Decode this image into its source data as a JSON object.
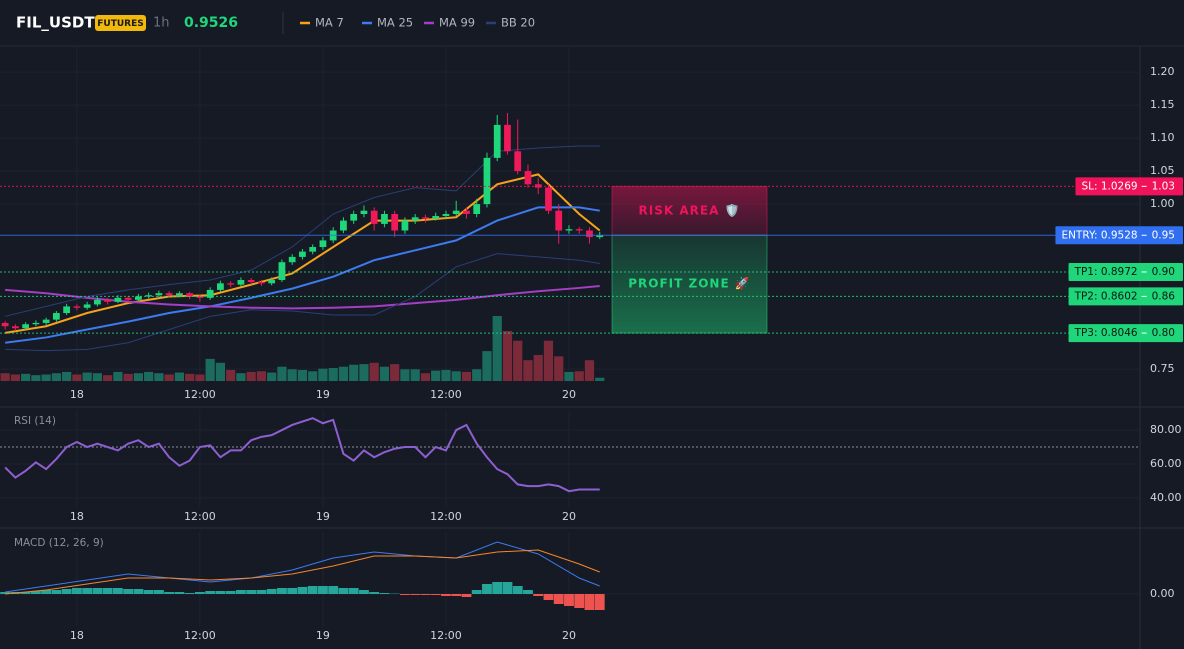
{
  "header": {
    "symbol": "FIL_USDT",
    "badge": "FUTURES",
    "interval": "1h",
    "price": "0.9526"
  },
  "chart_data": [
    {
      "type": "candlestick",
      "x": [
        0,
        1,
        2,
        3,
        4,
        5,
        6,
        7,
        8,
        9,
        10,
        11,
        12,
        13,
        14,
        15,
        16,
        17,
        18,
        19,
        20,
        21,
        22,
        23,
        24,
        25,
        26,
        27,
        28,
        29,
        30,
        31,
        32,
        33,
        34,
        35,
        36,
        37,
        38,
        39,
        40,
        41,
        42,
        43,
        44,
        45,
        46,
        47,
        48,
        49,
        50,
        51,
        52,
        53,
        54,
        55,
        56,
        57,
        58
      ],
      "candles": [
        [
          0.82,
          0.823,
          0.81,
          0.815
        ],
        [
          0.815,
          0.818,
          0.808,
          0.812
        ],
        [
          0.812,
          0.821,
          0.81,
          0.818
        ],
        [
          0.818,
          0.824,
          0.815,
          0.82
        ],
        [
          0.82,
          0.828,
          0.817,
          0.825
        ],
        [
          0.825,
          0.838,
          0.822,
          0.835
        ],
        [
          0.835,
          0.849,
          0.832,
          0.845
        ],
        [
          0.845,
          0.848,
          0.839,
          0.843
        ],
        [
          0.843,
          0.852,
          0.84,
          0.848
        ],
        [
          0.848,
          0.859,
          0.845,
          0.855
        ],
        [
          0.855,
          0.858,
          0.848,
          0.852
        ],
        [
          0.852,
          0.862,
          0.85,
          0.858
        ],
        [
          0.858,
          0.861,
          0.851,
          0.855
        ],
        [
          0.855,
          0.864,
          0.853,
          0.86
        ],
        [
          0.86,
          0.866,
          0.857,
          0.862
        ],
        [
          0.862,
          0.869,
          0.859,
          0.865
        ],
        [
          0.865,
          0.868,
          0.858,
          0.862
        ],
        [
          0.862,
          0.868,
          0.859,
          0.865
        ],
        [
          0.865,
          0.867,
          0.856,
          0.86
        ],
        [
          0.86,
          0.863,
          0.852,
          0.858
        ],
        [
          0.858,
          0.874,
          0.855,
          0.87
        ],
        [
          0.87,
          0.884,
          0.867,
          0.88
        ],
        [
          0.88,
          0.883,
          0.874,
          0.878
        ],
        [
          0.878,
          0.889,
          0.875,
          0.885
        ],
        [
          0.885,
          0.888,
          0.878,
          0.882
        ],
        [
          0.882,
          0.885,
          0.876,
          0.88
        ],
        [
          0.88,
          0.889,
          0.877,
          0.885
        ],
        [
          0.885,
          0.916,
          0.882,
          0.912
        ],
        [
          0.912,
          0.924,
          0.908,
          0.92
        ],
        [
          0.92,
          0.932,
          0.916,
          0.928
        ],
        [
          0.928,
          0.939,
          0.924,
          0.935
        ],
        [
          0.935,
          0.95,
          0.931,
          0.945
        ],
        [
          0.945,
          0.965,
          0.941,
          0.96
        ],
        [
          0.96,
          0.98,
          0.956,
          0.975
        ],
        [
          0.975,
          0.99,
          0.97,
          0.985
        ],
        [
          0.985,
          0.998,
          0.98,
          0.99
        ],
        [
          0.99,
          0.995,
          0.96,
          0.97
        ],
        [
          0.97,
          0.99,
          0.965,
          0.985
        ],
        [
          0.985,
          0.99,
          0.95,
          0.96
        ],
        [
          0.96,
          0.98,
          0.955,
          0.975
        ],
        [
          0.975,
          0.985,
          0.97,
          0.98
        ],
        [
          0.98,
          0.984,
          0.972,
          0.978
        ],
        [
          0.978,
          0.987,
          0.975,
          0.982
        ],
        [
          0.982,
          0.99,
          0.978,
          0.985
        ],
        [
          0.985,
          1.005,
          0.982,
          0.99
        ],
        [
          0.99,
          0.995,
          0.978,
          0.985
        ],
        [
          0.985,
          1.008,
          0.98,
          1.0
        ],
        [
          1.0,
          1.078,
          0.995,
          1.07
        ],
        [
          1.07,
          1.135,
          1.065,
          1.12
        ],
        [
          1.12,
          1.138,
          1.075,
          1.08
        ],
        [
          1.08,
          1.128,
          1.045,
          1.05
        ],
        [
          1.05,
          1.06,
          1.025,
          1.03
        ],
        [
          1.03,
          1.04,
          1.015,
          1.025
        ],
        [
          1.025,
          1.03,
          0.985,
          0.99
        ],
        [
          0.99,
          1.0,
          0.94,
          0.96
        ],
        [
          0.96,
          0.968,
          0.955,
          0.962
        ],
        [
          0.962,
          0.965,
          0.955,
          0.96
        ],
        [
          0.96,
          0.965,
          0.94,
          0.95
        ],
        [
          0.95,
          0.958,
          0.947,
          0.953
        ]
      ],
      "up_color": "#1fd67a",
      "down_color": "#f0195a",
      "volume": [
        12,
        10,
        11,
        9,
        10,
        12,
        14,
        10,
        13,
        12,
        9,
        14,
        11,
        12,
        14,
        12,
        10,
        13,
        11,
        10,
        34,
        28,
        17,
        12,
        14,
        15,
        13,
        22,
        18,
        17,
        15,
        19,
        20,
        22,
        25,
        26,
        28,
        22,
        26,
        18,
        18,
        12,
        16,
        17,
        15,
        14,
        18,
        46,
        100,
        77,
        62,
        32,
        40,
        62,
        38,
        14,
        15,
        32,
        5
      ],
      "volume_colors": [
        "#1b6b5e",
        "#7a2a39"
      ],
      "series": [
        {
          "name": "MA 7",
          "color": "#f7a21b",
          "x": [
            0,
            4,
            8,
            12,
            16,
            20,
            24,
            28,
            32,
            36,
            40,
            44,
            48,
            52,
            56,
            58
          ],
          "values": [
            0.805,
            0.815,
            0.835,
            0.85,
            0.86,
            0.862,
            0.878,
            0.895,
            0.935,
            0.975,
            0.975,
            0.98,
            1.03,
            1.045,
            0.985,
            0.96
          ]
        },
        {
          "name": "MA 25",
          "color": "#3d7bf0",
          "x": [
            0,
            4,
            8,
            12,
            16,
            20,
            24,
            28,
            32,
            36,
            40,
            44,
            48,
            52,
            56,
            58
          ],
          "values": [
            0.79,
            0.798,
            0.81,
            0.822,
            0.835,
            0.845,
            0.858,
            0.872,
            0.89,
            0.915,
            0.93,
            0.945,
            0.975,
            0.995,
            0.995,
            0.99
          ]
        },
        {
          "name": "MA 99",
          "color": "#a23fc4",
          "x": [
            0,
            4,
            8,
            12,
            16,
            20,
            24,
            28,
            32,
            36,
            40,
            44,
            48,
            52,
            56,
            58
          ],
          "values": [
            0.87,
            0.865,
            0.858,
            0.852,
            0.848,
            0.845,
            0.843,
            0.842,
            0.843,
            0.845,
            0.85,
            0.855,
            0.862,
            0.868,
            0.873,
            0.876
          ]
        },
        {
          "name": "BB 20",
          "color": "#2a3f78",
          "x": [
            0,
            4,
            8,
            12,
            16,
            20,
            24,
            28,
            32,
            36,
            40,
            44,
            48,
            52,
            56,
            58
          ],
          "values": [
            0.83,
            0.845,
            0.86,
            0.87,
            0.878,
            0.885,
            0.9,
            0.935,
            0.985,
            1.01,
            1.025,
            1.02,
            1.08,
            1.085,
            1.088,
            1.088
          ],
          "lower": [
            0.78,
            0.778,
            0.78,
            0.79,
            0.81,
            0.83,
            0.84,
            0.838,
            0.832,
            0.832,
            0.86,
            0.905,
            0.925,
            0.92,
            0.915,
            0.91
          ]
        }
      ],
      "levels": [
        {
          "label": "SL: 1.0269",
          "value": 1.0269,
          "axis_label": "1.03",
          "color": "#f0135a"
        },
        {
          "label": "ENTRY: 0.9528",
          "value": 0.9528,
          "axis_label": "0.95",
          "color": "#2f6ff0"
        },
        {
          "label": "TP1: 0.8972",
          "value": 0.8972,
          "axis_label": "0.90",
          "color": "#1fd67a"
        },
        {
          "label": "TP2: 0.8602",
          "value": 0.8602,
          "axis_label": "0.86",
          "color": "#1fd67a"
        },
        {
          "label": "TP3: 0.8046",
          "value": 0.8046,
          "axis_label": "0.80",
          "color": "#1fd67a"
        }
      ],
      "zones": [
        {
          "label": "RISK AREA 🛡️",
          "color": "#f0135a"
        },
        {
          "label": "PROFIT ZONE 🚀",
          "color": "#1fd67a"
        }
      ],
      "xlim": [
        -0.5,
        110.7
      ],
      "xticks": [
        {
          "value": 7,
          "label": "18"
        },
        {
          "value": 19,
          "label": "12:00"
        },
        {
          "value": 31,
          "label": "19"
        },
        {
          "value": 43,
          "label": "12:00"
        },
        {
          "value": 55,
          "label": "20"
        }
      ],
      "ylim": [
        0.729,
        1.241
      ],
      "yticks": [
        0.75,
        {
          "value": 1.0,
          "label": "1.00"
        },
        1.05,
        {
          "value": 1.1,
          "label": "1.10"
        },
        1.15,
        {
          "value": 1.2,
          "label": "1.20"
        }
      ],
      "grid": true
    },
    {
      "type": "line",
      "title": "RSI (14)",
      "color": "#8e5fd1",
      "x": [
        0,
        1,
        2,
        3,
        4,
        5,
        6,
        7,
        8,
        9,
        10,
        11,
        12,
        13,
        14,
        15,
        16,
        17,
        18,
        19,
        20,
        21,
        22,
        23,
        24,
        25,
        26,
        27,
        28,
        29,
        30,
        31,
        32,
        33,
        34,
        35,
        36,
        37,
        38,
        39,
        40,
        41,
        42,
        43,
        44,
        45,
        46,
        47,
        48,
        49,
        50,
        51,
        52,
        53,
        54,
        55,
        56,
        57,
        58
      ],
      "values": [
        58,
        52,
        56,
        61,
        57,
        63,
        70,
        73,
        70,
        72,
        70,
        68,
        72,
        74,
        70,
        72,
        64,
        59,
        62,
        70,
        71,
        64,
        68,
        68,
        74,
        76,
        77,
        80,
        83,
        85,
        87,
        84,
        86,
        66,
        62,
        68,
        64,
        67,
        69,
        70,
        70,
        64,
        70,
        68,
        80,
        83,
        72,
        64,
        57,
        54,
        48,
        47,
        47,
        48,
        47,
        44,
        45,
        45,
        45
      ],
      "levels": [
        70
      ],
      "xlim": [
        -0.5,
        110.7
      ],
      "xticks": [
        {
          "value": 7,
          "label": "18"
        },
        {
          "value": 19,
          "label": "12:00"
        },
        {
          "value": 31,
          "label": "19"
        },
        {
          "value": 43,
          "label": "12:00"
        },
        {
          "value": 55,
          "label": "20"
        }
      ],
      "ylim": [
        24.1,
        91.8
      ],
      "yticks": [
        {
          "value": 40,
          "label": "40.00"
        },
        {
          "value": 60,
          "label": "60.00"
        },
        {
          "value": 80,
          "label": "80.00"
        }
      ],
      "grid": true
    },
    {
      "type": "macd",
      "title": "MACD (12, 26, 9)",
      "x": [
        0,
        1,
        2,
        3,
        4,
        5,
        6,
        7,
        8,
        9,
        10,
        11,
        12,
        13,
        14,
        15,
        16,
        17,
        18,
        19,
        20,
        21,
        22,
        23,
        24,
        25,
        26,
        27,
        28,
        29,
        30,
        31,
        32,
        33,
        34,
        35,
        36,
        37,
        38,
        39,
        40,
        41,
        42,
        43,
        44,
        45,
        46,
        47,
        48,
        49,
        50,
        51,
        52,
        53,
        54,
        55,
        56,
        57,
        58
      ],
      "histogram": [
        0.001,
        0.001,
        0.001,
        0.0015,
        0.002,
        0.002,
        0.0025,
        0.003,
        0.003,
        0.003,
        0.003,
        0.003,
        0.0025,
        0.0025,
        0.002,
        0.002,
        0.001,
        0.001,
        0.0005,
        0.001,
        0.0015,
        0.0015,
        0.0015,
        0.002,
        0.002,
        0.002,
        0.0025,
        0.003,
        0.003,
        0.0035,
        0.004,
        0.004,
        0.004,
        0.003,
        0.003,
        0.002,
        0.001,
        0.0005,
        0.0002,
        -0.0005,
        -0.0005,
        -0.0005,
        -0.0005,
        -0.001,
        -0.001,
        -0.0015,
        0.002,
        0.005,
        0.006,
        0.006,
        0.004,
        0.002,
        -0.001,
        -0.003,
        -0.005,
        -0.006,
        -0.007,
        -0.008,
        -0.008
      ],
      "histogram_colors": [
        "#26a69a",
        "#ef5350"
      ],
      "series": [
        {
          "color": "#3d7bf0",
          "x": [
            0,
            4,
            8,
            12,
            16,
            20,
            24,
            28,
            32,
            36,
            40,
            44,
            48,
            52,
            56,
            58
          ],
          "values": [
            0.001,
            0.004,
            0.007,
            0.01,
            0.008,
            0.006,
            0.008,
            0.012,
            0.018,
            0.021,
            0.019,
            0.018,
            0.026,
            0.02,
            0.008,
            0.004
          ]
        },
        {
          "color": "#f7862a",
          "x": [
            0,
            4,
            8,
            12,
            16,
            20,
            24,
            28,
            32,
            36,
            40,
            44,
            48,
            52,
            56,
            58
          ],
          "values": [
            0.0,
            0.002,
            0.005,
            0.008,
            0.008,
            0.007,
            0.008,
            0.01,
            0.014,
            0.019,
            0.019,
            0.018,
            0.021,
            0.022,
            0.015,
            0.011
          ]
        }
      ],
      "xlim": [
        -0.5,
        110.7
      ],
      "xticks": [
        {
          "value": 7,
          "label": "18"
        },
        {
          "value": 19,
          "label": "12:00"
        },
        {
          "value": 31,
          "label": "19"
        },
        {
          "value": 43,
          "label": "12:00"
        },
        {
          "value": 55,
          "label": "20"
        }
      ],
      "ylim": [
        -0.023,
        0.031
      ],
      "yticks": [
        {
          "value": 0,
          "label": "0.00"
        }
      ],
      "grid": true
    }
  ]
}
